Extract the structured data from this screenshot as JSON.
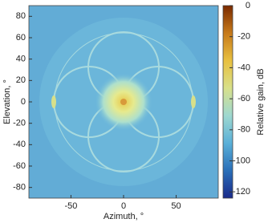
{
  "chart_data": {
    "type": "heatmap",
    "xlabel": "Azimuth, °",
    "ylabel": "Elevation, °",
    "xlim": [
      -90,
      90
    ],
    "ylim": [
      -90,
      90
    ],
    "xticks": [
      -50,
      0,
      50
    ],
    "yticks": [
      -80,
      -60,
      -40,
      -20,
      0,
      20,
      40,
      60,
      80
    ],
    "colorbar": {
      "label": "Relative gain, dB",
      "clim": [
        -124,
        0
      ],
      "ticks": [
        0,
        -20,
        -40,
        -60,
        -80,
        -100,
        -120
      ],
      "colormap": [
        "#1a2a8a",
        "#2a6fb8",
        "#5ab0d8",
        "#9ed8d0",
        "#d8e08a",
        "#e8c040",
        "#c77a1a",
        "#7a2a00"
      ]
    }
  }
}
